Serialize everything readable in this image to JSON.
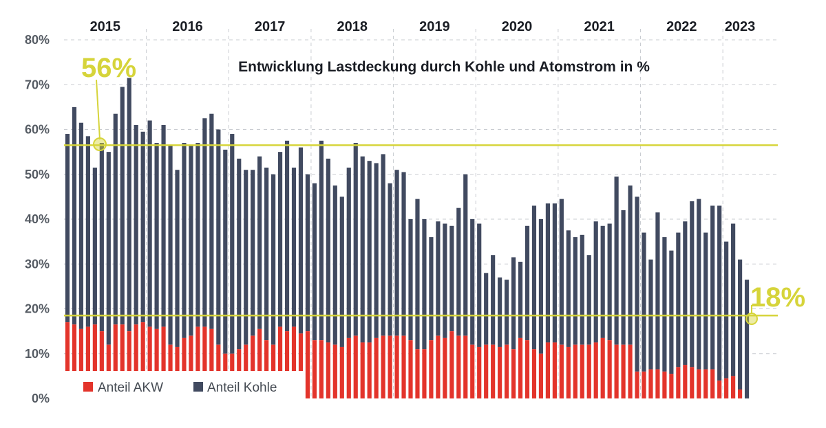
{
  "chart_data": {
    "type": "bar",
    "stacked": true,
    "title": "Entwicklung Lastdeckung durch Kohle und Atomstrom in %",
    "ylim": [
      0,
      80
    ],
    "yticks": [
      "0%",
      "10%",
      "20%",
      "30%",
      "40%",
      "50%",
      "60%",
      "70%",
      "80%"
    ],
    "grid": true,
    "years": [
      "2015",
      "2016",
      "2017",
      "2018",
      "2019",
      "2020",
      "2021",
      "2022",
      "2023"
    ],
    "legend": {
      "position": "bottom-left",
      "entries": [
        "Anteil AKW",
        "Anteil Kohle"
      ]
    },
    "series": [
      {
        "name": "Anteil AKW",
        "color": "#e3342b",
        "values": [
          17,
          16.5,
          15.5,
          16,
          16.5,
          15,
          12,
          16.5,
          16.5,
          15,
          16.5,
          17,
          16,
          15.5,
          16,
          12,
          11.5,
          13.5,
          14,
          16,
          16,
          15.5,
          12,
          10,
          10,
          11,
          12,
          14,
          15.5,
          13,
          12,
          16,
          15,
          16,
          14.5,
          15,
          13,
          13,
          12.5,
          12,
          11.5,
          13.5,
          14,
          12.5,
          12.5,
          13.5,
          14,
          14,
          14,
          14,
          13,
          11,
          11,
          13,
          14,
          13.5,
          15,
          14,
          14,
          12,
          11.5,
          12,
          12,
          11.5,
          12,
          11,
          13.5,
          13,
          11,
          10,
          12.5,
          12.5,
          12,
          11.5,
          12,
          12,
          12,
          12.5,
          13.5,
          13,
          12,
          12,
          12,
          6,
          6,
          6.5,
          6.5,
          6,
          5.5,
          7,
          7.5,
          7,
          6.5,
          6.5,
          6.5,
          4,
          4.5,
          5,
          2,
          0
        ],
        "total_values": [
          59,
          65,
          61.5,
          58.5,
          51.5,
          57,
          55,
          63.5,
          69.5,
          71.5,
          61,
          59.5,
          62,
          57,
          61,
          56.5,
          51,
          57,
          56.5,
          57,
          62.5,
          63.5,
          60,
          55.5,
          59,
          53.5,
          51,
          51,
          54,
          51.5,
          50,
          55,
          57.5,
          51.5,
          56,
          50,
          48,
          57.5,
          53.5,
          47.5,
          45,
          51.5,
          57,
          54,
          53,
          52.5,
          54.5,
          48,
          51,
          50.5,
          40,
          44.5,
          40,
          36,
          39.5,
          39,
          38.5,
          42.5,
          50,
          40,
          39,
          28,
          32,
          27,
          26.5,
          31.5,
          30.5,
          38.5,
          43,
          40,
          43.5,
          43.5,
          44.5,
          37.5,
          36,
          36.5,
          32,
          39.5,
          38.5,
          39,
          49.5,
          42,
          47.5,
          45,
          37,
          31,
          41.5,
          36,
          33,
          37,
          39.5,
          44,
          44.5,
          37,
          43,
          43,
          35,
          39,
          31,
          26.5,
          18
        ]
      },
      {
        "name": "Anteil Kohle",
        "color": "#414a60",
        "values": []
      }
    ]
  },
  "annotations": {
    "start_label": "56%",
    "start_value": 56.5,
    "end_label": "18%",
    "end_value": 18.5,
    "line_color": "#d6d43a"
  }
}
